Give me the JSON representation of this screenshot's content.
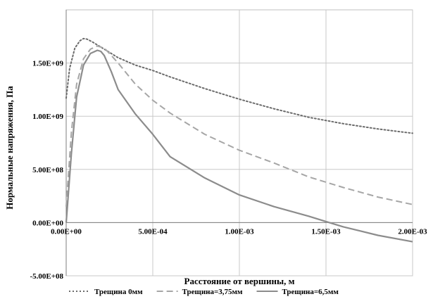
{
  "chart_data": {
    "type": "line",
    "xlabel": "Расстояние от вершины, м",
    "ylabel": "Нормальные напряжения, Па",
    "xlim": [
      0,
      0.002
    ],
    "ylim": [
      -500000000,
      1750000000
    ],
    "x_ticks": [
      0,
      0.0005,
      0.001,
      0.0015,
      0.002
    ],
    "x_tick_labels": [
      "0.00E+00",
      "5.00E-04",
      "1.00E-03",
      "1.50E-03",
      "2.00E-03"
    ],
    "y_ticks": [
      -500000000,
      0,
      500000000,
      1000000000,
      1500000000
    ],
    "y_tick_labels": [
      "-5.00E+08",
      "0.00E+00",
      "5.00E+08",
      "1.00E+09",
      "1.50E+09"
    ],
    "grid": true,
    "legend": "bottom",
    "series": [
      {
        "name": "Трещина 0мм",
        "color": "#6b6b6b",
        "style": "dotted",
        "x": [
          0,
          2e-05,
          5e-05,
          8e-05,
          0.0001,
          0.00012,
          0.00015,
          0.0002,
          0.0003,
          0.0004,
          0.0005,
          0.0006,
          0.0008,
          0.001,
          0.0012,
          0.0014,
          0.0016,
          0.0018,
          0.002
        ],
        "y": [
          1170000000,
          1450000000,
          1640000000,
          1710000000,
          1730000000,
          1725000000,
          1700000000,
          1650000000,
          1550000000,
          1480000000,
          1430000000,
          1370000000,
          1260000000,
          1160000000,
          1070000000,
          990000000,
          930000000,
          880000000,
          840000000
        ]
      },
      {
        "name": "Трещина=3,75мм",
        "color": "#a6a6a6",
        "style": "dashed",
        "x": [
          0,
          3e-05,
          6e-05,
          0.0001,
          0.00014,
          0.00018,
          0.00022,
          0.00025,
          0.0003,
          0.0004,
          0.0005,
          0.0006,
          0.0008,
          0.001,
          0.0012,
          0.0014,
          0.0016,
          0.0018,
          0.002
        ],
        "y": [
          150000000,
          850000000,
          1300000000,
          1540000000,
          1630000000,
          1660000000,
          1640000000,
          1590000000,
          1500000000,
          1300000000,
          1150000000,
          1030000000,
          830000000,
          680000000,
          560000000,
          430000000,
          330000000,
          240000000,
          170000000
        ]
      },
      {
        "name": "Трещина=6,5мм",
        "color": "#8c8c8c",
        "style": "solid",
        "x": [
          0,
          3e-05,
          6e-05,
          0.0001,
          0.00014,
          0.00018,
          0.0002,
          0.00022,
          0.00026,
          0.0003,
          0.0004,
          0.0005,
          0.0006,
          0.0008,
          0.001,
          0.0012,
          0.0014,
          0.0015,
          0.0016,
          0.0018,
          0.002
        ],
        "y": [
          0,
          650000000,
          1180000000,
          1480000000,
          1590000000,
          1620000000,
          1610000000,
          1570000000,
          1420000000,
          1250000000,
          1020000000,
          830000000,
          620000000,
          420000000,
          260000000,
          150000000,
          60000000,
          10000000,
          -40000000,
          -120000000,
          -180000000
        ]
      }
    ]
  }
}
